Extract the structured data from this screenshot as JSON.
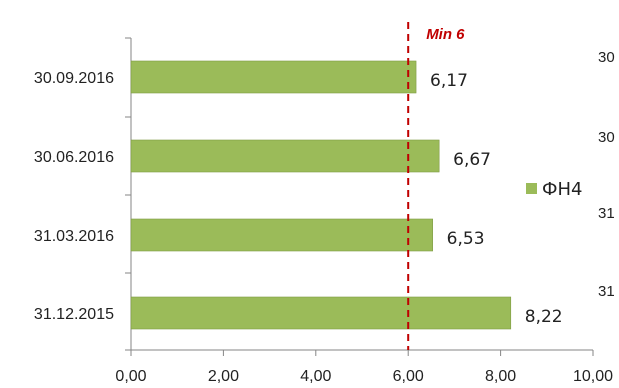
{
  "chart_data": {
    "type": "bar",
    "orientation": "horizontal",
    "categories": [
      "30.09.2016",
      "30.06.2016",
      "31.03.2016",
      "31.12.2015"
    ],
    "series": [
      {
        "name": "ФН4",
        "values": [
          6.17,
          6.67,
          6.53,
          8.22
        ],
        "value_labels": [
          "6,17",
          "6,67",
          "6,53",
          "8,22"
        ],
        "color": "#9bbb59"
      }
    ],
    "xlim": [
      0,
      10
    ],
    "x_ticks": [
      0,
      2,
      4,
      6,
      8,
      10
    ],
    "x_tick_labels": [
      "0,00",
      "2,00",
      "4,00",
      "6,00",
      "8,00",
      "10,00"
    ],
    "grid": false,
    "legend_position": "right",
    "reference_line": {
      "value": 6,
      "label": "Min  6",
      "color": "#c00000",
      "style": "dashed"
    },
    "clipped_labels_right": [
      "30",
      "30",
      "31",
      "31"
    ]
  }
}
